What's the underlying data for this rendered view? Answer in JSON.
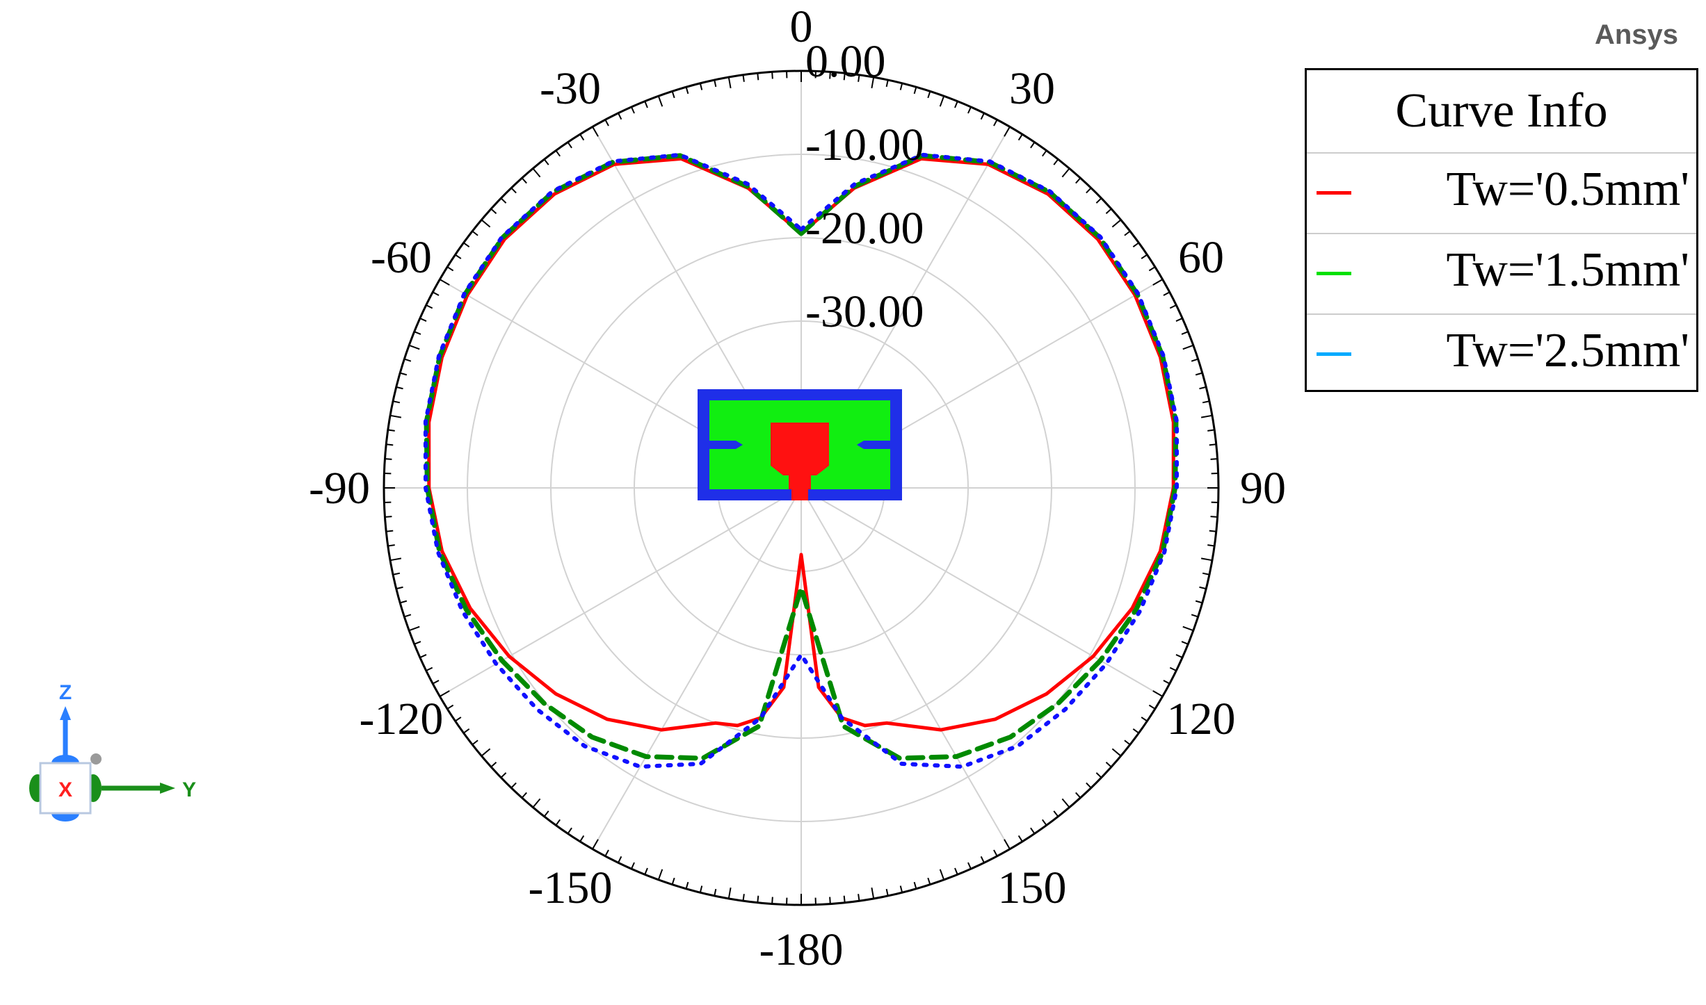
{
  "brand": "Ansys",
  "legend": {
    "title": "Curve Info",
    "items": [
      {
        "label": "Tw='0.5mm'",
        "color": "#ff0000"
      },
      {
        "label": "Tw='1.5mm'",
        "color": "#00e000"
      },
      {
        "label": "Tw='2.5mm'",
        "color": "#00aaff"
      }
    ]
  },
  "axes_triad": {
    "z": "Z",
    "y": "Y",
    "x": "X"
  },
  "chart_data": {
    "type": "polar",
    "angle_ticks": [
      0,
      30,
      60,
      90,
      120,
      150,
      -180,
      -150,
      -120,
      -90,
      -60,
      -30
    ],
    "radial_ticks": [
      "0.00",
      "-10.00",
      "-20.00",
      "-30.00"
    ],
    "radial_range": [
      -50,
      0
    ],
    "grid": true,
    "legend_position": "top-right",
    "series": [
      {
        "name": "Tw='0.5mm'",
        "color": "#ff0000",
        "line_style": "solid",
        "angles_deg": [
          0,
          10,
          20,
          30,
          40,
          50,
          60,
          70,
          80,
          90,
          100,
          110,
          120,
          130,
          140,
          150,
          160,
          165,
          170,
          175,
          180
        ],
        "gain_db": [
          -19.5,
          -13.5,
          -8.0,
          -5.2,
          -4.0,
          -3.6,
          -3.8,
          -4.2,
          -4.7,
          -5.4,
          -6.3,
          -7.8,
          -9.6,
          -11.6,
          -13.8,
          -16.5,
          -20.0,
          -20.5,
          -22.0,
          -26.0,
          -42.0
        ]
      },
      {
        "name": "Tw='1.5mm'",
        "color": "#00e000",
        "line_style": "dashed",
        "angles_deg": [
          0,
          10,
          20,
          30,
          40,
          50,
          60,
          70,
          80,
          90,
          100,
          110,
          120,
          130,
          140,
          150,
          160,
          170,
          180
        ],
        "gain_db": [
          -19.5,
          -13.3,
          -7.6,
          -4.9,
          -3.7,
          -3.3,
          -3.5,
          -3.9,
          -4.4,
          -5.2,
          -6.0,
          -7.3,
          -8.6,
          -9.8,
          -11.0,
          -12.8,
          -15.5,
          -21.0,
          -38.0
        ]
      },
      {
        "name": "Tw='2.5mm'",
        "color": "#00aaff",
        "line_style": "dotted",
        "angles_deg": [
          0,
          10,
          20,
          30,
          40,
          50,
          60,
          70,
          80,
          90,
          100,
          110,
          120,
          130,
          140,
          150,
          160,
          170,
          180
        ],
        "gain_db": [
          -19.0,
          -13.0,
          -7.5,
          -4.8,
          -3.6,
          -3.2,
          -3.4,
          -3.8,
          -4.3,
          -5.0,
          -5.8,
          -6.8,
          -7.8,
          -8.7,
          -9.6,
          -11.4,
          -14.8,
          -22.0,
          -30.0
        ]
      }
    ]
  }
}
